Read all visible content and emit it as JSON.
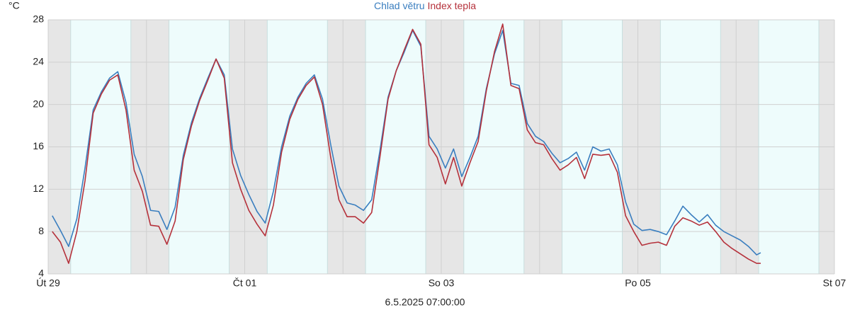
{
  "chart_data": {
    "type": "line",
    "y_label": "°C",
    "annotation": "6.5.2025 07:00:00",
    "xlim": [
      0,
      192
    ],
    "ylim": [
      4,
      28
    ],
    "yticks": [
      4,
      8,
      12,
      16,
      20,
      24,
      28
    ],
    "xticks": [
      {
        "value": 0,
        "label": "Út 29"
      },
      {
        "value": 48,
        "label": "Čt 01"
      },
      {
        "value": 96,
        "label": "So 03"
      },
      {
        "value": 144,
        "label": "Po 05"
      },
      {
        "value": 192,
        "label": "St 07"
      }
    ],
    "x_minor_ticks": [
      24,
      72,
      120,
      168
    ],
    "grid": true,
    "day_periods": [
      [
        5.5,
        20.2
      ],
      [
        29.5,
        44.2
      ],
      [
        53.5,
        68.2
      ],
      [
        77.5,
        92.2
      ],
      [
        101.5,
        116.2
      ],
      [
        125.5,
        140.2
      ],
      [
        149.5,
        164.2
      ],
      [
        173.5,
        188.2
      ]
    ],
    "x": [
      1,
      3,
      5,
      7,
      9,
      11,
      13,
      15,
      17,
      19,
      21,
      23,
      25,
      27,
      29,
      31,
      33,
      35,
      37,
      39,
      41,
      43,
      45,
      47,
      49,
      51,
      53,
      55,
      57,
      59,
      61,
      63,
      65,
      67,
      69,
      71,
      73,
      75,
      77,
      79,
      81,
      83,
      85,
      87,
      89,
      91,
      93,
      95,
      97,
      99,
      101,
      103,
      105,
      107,
      109,
      111,
      113,
      115,
      117,
      119,
      121,
      123,
      125,
      127,
      129,
      131,
      133,
      135,
      137,
      139,
      141,
      143,
      145,
      147,
      149,
      151,
      153,
      155,
      157,
      159,
      161,
      163,
      165,
      167,
      169,
      171,
      173,
      174
    ],
    "series": [
      {
        "name": "Chlad větru",
        "color": "#3a7ebf",
        "values": [
          9.5,
          8.1,
          6.6,
          9.2,
          14,
          19.5,
          21.2,
          22.5,
          23.1,
          20.2,
          15.3,
          13.2,
          10,
          9.9,
          8.2,
          10.3,
          15.2,
          18.3,
          20.6,
          22.5,
          24.3,
          22.8,
          15.8,
          13.3,
          11.5,
          9.9,
          8.8,
          11.8,
          16,
          18.9,
          20.7,
          22,
          22.8,
          20.5,
          16.2,
          12.3,
          10.7,
          10.5,
          10,
          11,
          15.6,
          20.7,
          23.2,
          25,
          27,
          25.5,
          17,
          15.8,
          14,
          15.8,
          13.2,
          15,
          17,
          21.5,
          24.8,
          27,
          22,
          21.8,
          18.2,
          17,
          16.5,
          15.4,
          14.5,
          14.9,
          15.5,
          13.8,
          16,
          15.6,
          15.8,
          14.3,
          10.8,
          8.7,
          8.1,
          8.2,
          8,
          7.7,
          9,
          10.4,
          9.6,
          8.9,
          9.6,
          8.6,
          8,
          7.6,
          7.2,
          6.6,
          5.8,
          6
        ]
      },
      {
        "name": "Index tepla",
        "color": "#b5313b",
        "values": [
          8,
          7,
          5,
          8,
          12.8,
          19.2,
          21,
          22.3,
          22.8,
          19.5,
          13.8,
          11.8,
          8.6,
          8.5,
          6.8,
          9,
          14.8,
          18,
          20.4,
          22.3,
          24.3,
          22.5,
          14.5,
          12,
          10,
          8.7,
          7.6,
          10.5,
          15.5,
          18.6,
          20.5,
          21.8,
          22.6,
          20,
          15,
          11,
          9.4,
          9.4,
          8.8,
          9.8,
          15,
          20.5,
          23.2,
          25.2,
          27.1,
          25.7,
          16.2,
          15,
          12.5,
          15,
          12.3,
          14.5,
          16.5,
          21.3,
          25,
          27.6,
          21.8,
          21.5,
          17.6,
          16.4,
          16.2,
          14.9,
          13.8,
          14.3,
          15,
          13,
          15.3,
          15.2,
          15.3,
          13.6,
          9.5,
          8,
          6.7,
          6.9,
          7,
          6.7,
          8.5,
          9.3,
          9,
          8.6,
          8.9,
          8,
          7,
          6.4,
          5.9,
          5.4,
          5,
          5
        ]
      }
    ]
  }
}
